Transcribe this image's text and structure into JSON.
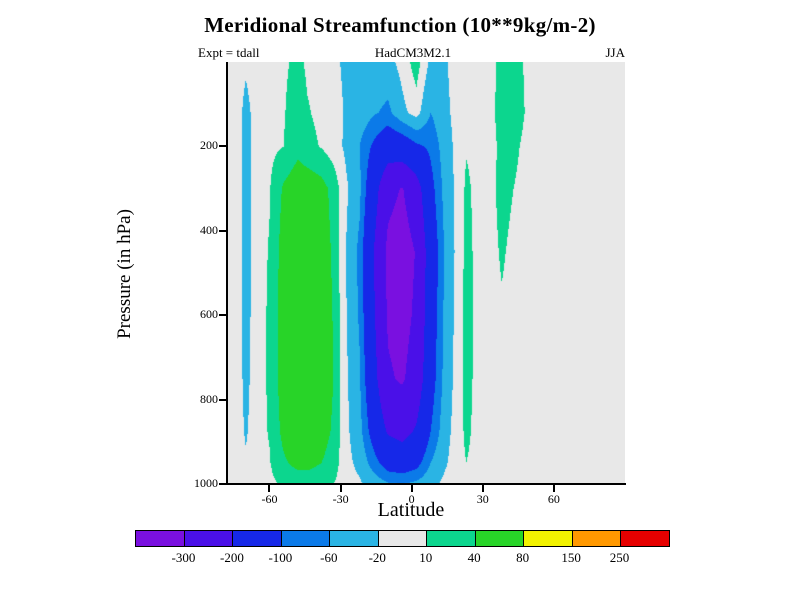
{
  "header": {
    "experiment": "Expt = tdall",
    "model": "HadCM3M2.1",
    "season": "JJA"
  },
  "chart_data": {
    "type": "heatmap",
    "subtype": "filled-contour",
    "title": "Meridional Streamfunction (10**9kg/m-2)",
    "xlabel": "Latitude",
    "ylabel": "Pressure (in hPa)",
    "units": "10**9 kg/m-2",
    "x_range": [
      -77.5,
      90
    ],
    "y_range": [
      0,
      1000
    ],
    "x_ticks": [
      -60,
      -30,
      0,
      30,
      60
    ],
    "y_ticks": [
      200,
      400,
      600,
      800,
      1000
    ],
    "levels": [
      -300,
      -200,
      -100,
      -60,
      -20,
      10,
      40,
      80,
      150,
      250
    ],
    "palette": [
      "#7a10e0",
      "#4a10e8",
      "#1628e8",
      "#0b7ae8",
      "#2ab4e4",
      "#e8e8e8",
      "#0cd68e",
      "#28d428",
      "#f2f200",
      "#ff9800",
      "#e60000"
    ],
    "background_color": "#e8e8e8",
    "grid": {
      "lats": [
        -77,
        -73,
        -70,
        -66,
        -60,
        -54,
        -48,
        -44,
        -38,
        -33,
        -28,
        -22,
        -16,
        -10,
        -4,
        2,
        8,
        14,
        19,
        23,
        27,
        33,
        38,
        43,
        50,
        60,
        75,
        90
      ],
      "pressures": [
        0,
        120,
        200,
        300,
        450,
        600,
        750,
        875,
        950,
        1000
      ],
      "values": [
        [
          0,
          0,
          -12,
          0,
          3,
          6,
          16,
          6,
          2,
          -15,
          -24,
          -26,
          -28,
          -32,
          -8,
          25,
          -28,
          -24,
          -6,
          3,
          2,
          3,
          16,
          18,
          4,
          1,
          0,
          0
        ],
        [
          0,
          -6,
          -35,
          -5,
          4,
          8,
          25,
          12,
          4,
          -10,
          -22,
          -35,
          -55,
          -70,
          -30,
          -5,
          -60,
          -30,
          -8,
          6,
          3,
          4,
          18,
          20,
          5,
          1,
          0,
          0
        ],
        [
          0,
          -8,
          -38,
          -6,
          3,
          10,
          30,
          18,
          8,
          -5,
          -25,
          -60,
          -110,
          -150,
          -140,
          -110,
          -90,
          -40,
          -10,
          8,
          4,
          3,
          15,
          14,
          3,
          1,
          0,
          0
        ],
        [
          0,
          -6,
          -36,
          -4,
          8,
          45,
          62,
          62,
          52,
          30,
          -12,
          -50,
          -160,
          -275,
          -305,
          -240,
          -120,
          -45,
          -12,
          15,
          5,
          4,
          16,
          10,
          2,
          1,
          0,
          0
        ],
        [
          0,
          -8,
          -38,
          -4,
          12,
          55,
          72,
          72,
          58,
          35,
          -18,
          -70,
          -200,
          -320,
          -340,
          -295,
          -150,
          -55,
          -12,
          18,
          6,
          4,
          12,
          6,
          2,
          0,
          0,
          0
        ],
        [
          0,
          -8,
          -36,
          -4,
          14,
          58,
          75,
          74,
          60,
          38,
          -15,
          -65,
          -190,
          -310,
          -330,
          -285,
          -140,
          -50,
          -10,
          20,
          6,
          4,
          8,
          4,
          2,
          0,
          0,
          0
        ],
        [
          0,
          -6,
          -32,
          -3,
          14,
          58,
          76,
          75,
          62,
          40,
          -12,
          -55,
          -170,
          -290,
          -310,
          -260,
          -130,
          -45,
          -8,
          20,
          5,
          3,
          6,
          3,
          1,
          0,
          0,
          0
        ],
        [
          0,
          -5,
          -25,
          -2,
          12,
          50,
          68,
          68,
          55,
          35,
          -10,
          -45,
          -130,
          -210,
          -230,
          -190,
          -100,
          -35,
          -5,
          16,
          4,
          2,
          4,
          2,
          1,
          0,
          0,
          0
        ],
        [
          0,
          -3,
          -15,
          -1,
          8,
          35,
          50,
          50,
          40,
          25,
          -8,
          -30,
          -80,
          -130,
          -140,
          -120,
          -60,
          -25,
          -3,
          10,
          3,
          1,
          2,
          1,
          0,
          0,
          0,
          0
        ],
        [
          0,
          0,
          -5,
          0,
          3,
          15,
          22,
          22,
          18,
          10,
          -4,
          -15,
          -35,
          -55,
          -60,
          -50,
          -30,
          -12,
          -2,
          4,
          1,
          0,
          0,
          0,
          0,
          0,
          0,
          0
        ]
      ]
    }
  }
}
